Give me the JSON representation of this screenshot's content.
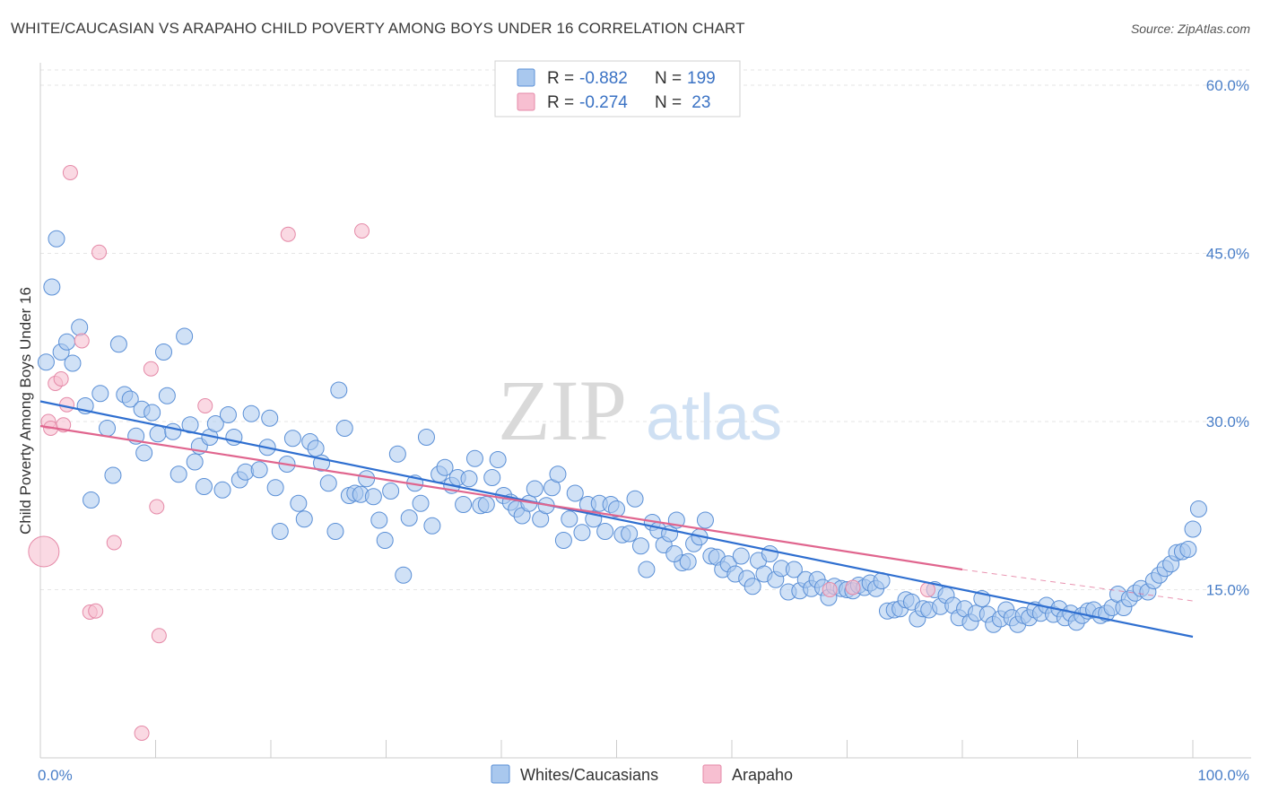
{
  "title": "WHITE/CAUCASIAN VS ARAPAHO CHILD POVERTY AMONG BOYS UNDER 16 CORRELATION CHART",
  "source": "Source: ZipAtlas.com",
  "watermark": {
    "zip": "ZIP",
    "atlas": "atlas"
  },
  "legend": {
    "row1": {
      "r_label": "R = ",
      "r_value": "-0.882",
      "n_label": "N = ",
      "n_value": "199"
    },
    "row2": {
      "r_label": "R = ",
      "r_value": "-0.274",
      "n_label": "N = ",
      "n_value": " 23"
    }
  },
  "bottom_legend": {
    "series1": "Whites/Caucasians",
    "series2": "Arapaho"
  },
  "colors": {
    "blue_fill": "#a9c8ee",
    "blue_stroke": "#5a8fd6",
    "blue_line": "#2f6fd0",
    "pink_fill": "#f7bfd1",
    "pink_stroke": "#e58aa8",
    "pink_line": "#e0658e",
    "tick_color": "#4a7fc8",
    "grid": "#e6e6e6"
  },
  "chart_data": {
    "type": "scatter",
    "title": "WHITE/CAUCASIAN VS ARAPAHO CHILD POVERTY AMONG BOYS UNDER 16 CORRELATION CHART",
    "xlabel": "",
    "ylabel": "Child Poverty Among Boys Under 16",
    "xlim": [
      0,
      100
    ],
    "ylim": [
      0,
      62
    ],
    "x_tick_labels": [
      "0.0%",
      "100.0%"
    ],
    "y_ticks": [
      15,
      30,
      45,
      60
    ],
    "y_tick_labels": [
      "15.0%",
      "30.0%",
      "45.0%",
      "60.0%"
    ],
    "series": [
      {
        "name": "Whites/Caucasians",
        "r": -0.882,
        "n": 199,
        "trend": {
          "x": [
            0,
            100
          ],
          "y": [
            31.8,
            10.8
          ]
        },
        "points": [
          [
            0.5,
            35.3
          ],
          [
            1.0,
            42.0
          ],
          [
            1.4,
            46.3
          ],
          [
            1.8,
            36.2
          ],
          [
            2.3,
            37.1
          ],
          [
            2.8,
            35.2
          ],
          [
            3.4,
            38.4
          ],
          [
            3.9,
            31.4
          ],
          [
            4.4,
            23.0
          ],
          [
            5.2,
            32.5
          ],
          [
            5.8,
            29.4
          ],
          [
            6.3,
            25.2
          ],
          [
            6.8,
            36.9
          ],
          [
            7.3,
            32.4
          ],
          [
            7.8,
            32.0
          ],
          [
            8.3,
            28.7
          ],
          [
            8.8,
            31.1
          ],
          [
            9.0,
            27.2
          ],
          [
            9.7,
            30.8
          ],
          [
            10.2,
            28.9
          ],
          [
            10.7,
            36.2
          ],
          [
            11.0,
            32.3
          ],
          [
            11.5,
            29.1
          ],
          [
            12.0,
            25.3
          ],
          [
            12.5,
            37.6
          ],
          [
            13.0,
            29.7
          ],
          [
            13.4,
            26.4
          ],
          [
            13.8,
            27.8
          ],
          [
            14.2,
            24.2
          ],
          [
            14.7,
            28.6
          ],
          [
            15.2,
            29.8
          ],
          [
            15.8,
            23.9
          ],
          [
            16.3,
            30.6
          ],
          [
            16.8,
            28.6
          ],
          [
            17.3,
            24.8
          ],
          [
            17.8,
            25.5
          ],
          [
            18.3,
            30.7
          ],
          [
            19.0,
            25.7
          ],
          [
            19.7,
            27.7
          ],
          [
            19.9,
            30.3
          ],
          [
            20.4,
            24.1
          ],
          [
            20.8,
            20.2
          ],
          [
            21.4,
            26.2
          ],
          [
            21.9,
            28.5
          ],
          [
            22.4,
            22.7
          ],
          [
            22.9,
            21.3
          ],
          [
            23.4,
            28.2
          ],
          [
            23.9,
            27.6
          ],
          [
            24.4,
            26.3
          ],
          [
            25.0,
            24.5
          ],
          [
            25.6,
            20.2
          ],
          [
            25.9,
            32.8
          ],
          [
            26.4,
            29.4
          ],
          [
            26.8,
            23.4
          ],
          [
            27.3,
            23.6
          ],
          [
            27.8,
            23.5
          ],
          [
            28.3,
            24.9
          ],
          [
            28.9,
            23.3
          ],
          [
            29.4,
            21.2
          ],
          [
            29.9,
            19.4
          ],
          [
            30.4,
            23.8
          ],
          [
            31.0,
            27.1
          ],
          [
            31.5,
            16.3
          ],
          [
            32.0,
            21.4
          ],
          [
            32.5,
            24.5
          ],
          [
            33.0,
            22.7
          ],
          [
            33.5,
            28.6
          ],
          [
            34.0,
            20.7
          ],
          [
            34.6,
            25.3
          ],
          [
            35.1,
            25.9
          ],
          [
            35.7,
            24.3
          ],
          [
            36.2,
            25.0
          ],
          [
            36.7,
            22.6
          ],
          [
            37.2,
            24.9
          ],
          [
            37.7,
            26.7
          ],
          [
            38.2,
            22.5
          ],
          [
            38.7,
            22.6
          ],
          [
            39.2,
            25.0
          ],
          [
            39.7,
            26.6
          ],
          [
            40.2,
            23.4
          ],
          [
            40.8,
            22.8
          ],
          [
            41.3,
            22.2
          ],
          [
            41.8,
            21.6
          ],
          [
            42.4,
            22.7
          ],
          [
            42.9,
            24.0
          ],
          [
            43.4,
            21.3
          ],
          [
            43.9,
            22.5
          ],
          [
            44.4,
            24.1
          ],
          [
            44.9,
            25.3
          ],
          [
            45.4,
            19.4
          ],
          [
            45.9,
            21.3
          ],
          [
            46.4,
            23.6
          ],
          [
            47.0,
            20.1
          ],
          [
            47.5,
            22.6
          ],
          [
            48.0,
            21.3
          ],
          [
            48.5,
            22.7
          ],
          [
            49.0,
            20.2
          ],
          [
            49.5,
            22.6
          ],
          [
            50.0,
            22.2
          ],
          [
            50.5,
            19.9
          ],
          [
            51.1,
            20.0
          ],
          [
            51.6,
            23.1
          ],
          [
            52.1,
            18.9
          ],
          [
            52.6,
            16.8
          ],
          [
            53.1,
            21.0
          ],
          [
            53.6,
            20.3
          ],
          [
            54.1,
            19.0
          ],
          [
            54.6,
            20.0
          ],
          [
            55.2,
            21.2
          ],
          [
            55.7,
            17.4
          ],
          [
            56.2,
            17.5
          ],
          [
            56.7,
            19.1
          ],
          [
            57.2,
            19.7
          ],
          [
            57.7,
            21.2
          ],
          [
            58.2,
            18.0
          ],
          [
            58.7,
            17.9
          ],
          [
            59.2,
            16.8
          ],
          [
            59.7,
            17.3
          ],
          [
            60.3,
            16.4
          ],
          [
            60.8,
            18.0
          ],
          [
            61.3,
            16.0
          ],
          [
            61.8,
            15.3
          ],
          [
            62.3,
            17.6
          ],
          [
            62.8,
            16.4
          ],
          [
            63.3,
            18.2
          ],
          [
            63.8,
            15.9
          ],
          [
            64.3,
            16.9
          ],
          [
            64.9,
            14.8
          ],
          [
            65.4,
            16.8
          ],
          [
            65.9,
            14.9
          ],
          [
            66.4,
            15.9
          ],
          [
            66.9,
            15.1
          ],
          [
            67.4,
            15.9
          ],
          [
            67.9,
            15.2
          ],
          [
            68.4,
            14.3
          ],
          [
            68.9,
            15.3
          ],
          [
            69.5,
            15.1
          ],
          [
            70.0,
            15.0
          ],
          [
            70.5,
            14.9
          ],
          [
            71.0,
            15.4
          ],
          [
            71.5,
            15.2
          ],
          [
            72.0,
            15.6
          ],
          [
            72.5,
            15.1
          ],
          [
            73.0,
            15.8
          ],
          [
            73.5,
            13.1
          ],
          [
            74.1,
            13.2
          ],
          [
            74.6,
            13.3
          ],
          [
            75.1,
            14.1
          ],
          [
            75.6,
            13.9
          ],
          [
            76.1,
            12.4
          ],
          [
            76.6,
            13.3
          ],
          [
            77.1,
            13.2
          ],
          [
            77.6,
            15.0
          ],
          [
            78.1,
            13.5
          ],
          [
            78.6,
            14.5
          ],
          [
            79.2,
            13.6
          ],
          [
            79.7,
            12.5
          ],
          [
            80.2,
            13.3
          ],
          [
            80.7,
            12.1
          ],
          [
            81.2,
            12.9
          ],
          [
            81.7,
            14.2
          ],
          [
            82.2,
            12.8
          ],
          [
            82.7,
            11.9
          ],
          [
            83.3,
            12.4
          ],
          [
            83.8,
            13.2
          ],
          [
            84.3,
            12.5
          ],
          [
            84.8,
            11.9
          ],
          [
            85.3,
            12.7
          ],
          [
            85.8,
            12.5
          ],
          [
            86.3,
            13.2
          ],
          [
            86.8,
            12.9
          ],
          [
            87.3,
            13.6
          ],
          [
            87.9,
            12.8
          ],
          [
            88.4,
            13.3
          ],
          [
            88.9,
            12.5
          ],
          [
            89.4,
            12.9
          ],
          [
            89.9,
            12.1
          ],
          [
            90.4,
            12.7
          ],
          [
            90.9,
            13.1
          ],
          [
            91.4,
            13.2
          ],
          [
            92.0,
            12.7
          ],
          [
            92.5,
            12.9
          ],
          [
            93.0,
            13.4
          ],
          [
            93.5,
            14.6
          ],
          [
            94.0,
            13.4
          ],
          [
            94.5,
            14.2
          ],
          [
            95.0,
            14.7
          ],
          [
            95.5,
            15.1
          ],
          [
            96.1,
            14.8
          ],
          [
            96.6,
            15.8
          ],
          [
            97.1,
            16.3
          ],
          [
            97.6,
            16.9
          ],
          [
            98.1,
            17.3
          ],
          [
            98.6,
            18.3
          ],
          [
            99.1,
            18.4
          ],
          [
            99.6,
            18.6
          ],
          [
            100.0,
            20.4
          ],
          [
            100.5,
            22.2
          ],
          [
            55.0,
            18.2
          ]
        ]
      },
      {
        "name": "Arapaho",
        "r": -0.274,
        "n": 23,
        "trend": {
          "x": [
            0,
            80
          ],
          "y": [
            29.6,
            16.8
          ]
        },
        "trend_dashed": {
          "x": [
            80,
            100
          ],
          "y": [
            16.8,
            14.0
          ]
        },
        "points": [
          [
            0.3,
            18.4
          ],
          [
            0.7,
            30.0
          ],
          [
            0.9,
            29.4
          ],
          [
            1.3,
            33.4
          ],
          [
            1.8,
            33.8
          ],
          [
            2.0,
            29.7
          ],
          [
            2.3,
            31.5
          ],
          [
            2.6,
            52.2
          ],
          [
            5.1,
            45.1
          ],
          [
            3.6,
            37.2
          ],
          [
            4.3,
            13.0
          ],
          [
            4.8,
            13.1
          ],
          [
            6.4,
            19.2
          ],
          [
            9.6,
            34.7
          ],
          [
            10.1,
            22.4
          ],
          [
            10.3,
            10.9
          ],
          [
            14.3,
            31.4
          ],
          [
            21.5,
            46.7
          ],
          [
            27.9,
            47.0
          ],
          [
            8.8,
            2.2
          ],
          [
            68.5,
            15.0
          ],
          [
            70.5,
            15.2
          ],
          [
            77.0,
            15.0
          ]
        ]
      }
    ]
  }
}
